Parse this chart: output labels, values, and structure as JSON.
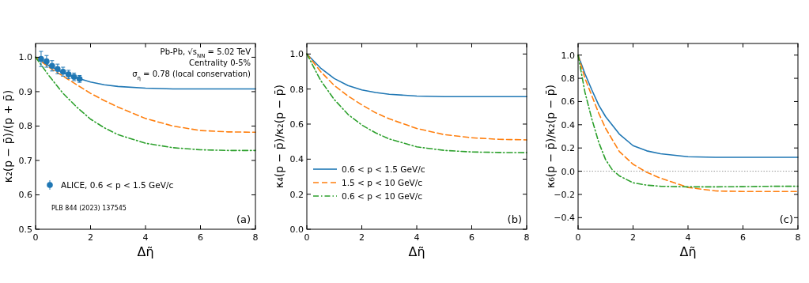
{
  "chart_data": [
    {
      "type": "line",
      "xlabel": "Δη̃",
      "ylabel": "κ₂(p − p̄)/(p + p̄)",
      "xlim": [
        0,
        8
      ],
      "xticks": [
        0,
        2,
        4,
        6,
        8
      ],
      "ylim": [
        0.5,
        1.04
      ],
      "yticks": [
        0.5,
        0.6,
        0.7,
        0.8,
        0.9,
        {
          "value": 1,
          "label": "1.0"
        }
      ],
      "grid": false,
      "legend": "bottom left",
      "annotations": [
        "Pb-Pb, √s$_{NN}$ = 5.02 TeV",
        "Centrality 0-5%",
        "σ$_{η}$ = 0.78 (local conservation)",
        "PLB 844 (2023) 137545",
        "(a)"
      ],
      "series": [
        {
          "color": "#1f77b4",
          "line_style": "solid",
          "x": [
            0,
            0.5,
            1,
            1.5,
            2,
            2.5,
            3,
            4,
            5,
            6,
            7,
            8
          ],
          "values": [
            1.0,
            0.975,
            0.955,
            0.94,
            0.928,
            0.92,
            0.915,
            0.91,
            0.908,
            0.908,
            0.908,
            0.908
          ]
        },
        {
          "color": "#ff7f0e",
          "line_style": "dashed",
          "x": [
            0,
            0.5,
            1,
            1.5,
            2,
            2.5,
            3,
            4,
            5,
            6,
            7,
            8
          ],
          "values": [
            1.0,
            0.97,
            0.945,
            0.92,
            0.895,
            0.874,
            0.855,
            0.822,
            0.8,
            0.787,
            0.783,
            0.782
          ]
        },
        {
          "color": "#2ca02c",
          "line_style": "dashdot",
          "x": [
            0,
            0.5,
            1,
            1.5,
            2,
            2.5,
            3,
            4,
            5,
            6,
            7,
            8
          ],
          "values": [
            1.0,
            0.945,
            0.895,
            0.855,
            0.82,
            0.795,
            0.775,
            0.75,
            0.737,
            0.731,
            0.729,
            0.729
          ]
        },
        {
          "type": "scatter",
          "name": "ALICE, 0.6 < p < 1.5 GeV/c",
          "color": "#1f77b4",
          "marker": "circle",
          "x": [
            0.2,
            0.4,
            0.6,
            0.8,
            1.0,
            1.2,
            1.4,
            1.6
          ],
          "values": [
            0.995,
            0.988,
            0.975,
            0.966,
            0.958,
            0.95,
            0.943,
            0.937
          ],
          "errors": [
            0.022,
            0.017,
            0.015,
            0.014,
            0.013,
            0.012,
            0.011,
            0.01
          ]
        }
      ]
    },
    {
      "type": "line",
      "xlabel": "Δη̃",
      "ylabel": "κ₄(p − p̄)/κ₂(p − p̄)",
      "xlim": [
        0,
        8
      ],
      "xticks": [
        0,
        2,
        4,
        6,
        8
      ],
      "ylim": [
        0,
        1.06
      ],
      "yticks": [
        {
          "value": 0,
          "label": "0.0"
        },
        0.2,
        0.4,
        0.6,
        0.8,
        {
          "value": 1,
          "label": "1.0"
        }
      ],
      "grid": false,
      "legend": "bottom left",
      "annotations": [
        "(b)"
      ],
      "series": [
        {
          "name": "0.6 < p < 1.5 GeV/c",
          "color": "#1f77b4",
          "line_style": "solid",
          "x": [
            0,
            0.5,
            1,
            1.5,
            2,
            2.5,
            3,
            4,
            5,
            6,
            7,
            8
          ],
          "values": [
            1.0,
            0.92,
            0.86,
            0.82,
            0.795,
            0.78,
            0.77,
            0.76,
            0.757,
            0.757,
            0.757,
            0.757
          ]
        },
        {
          "name": "1.5 < p < 10 GeV/c",
          "color": "#ff7f0e",
          "line_style": "dashed",
          "x": [
            0,
            0.5,
            1,
            1.5,
            2,
            2.5,
            3,
            4,
            5,
            6,
            7,
            8
          ],
          "values": [
            1.0,
            0.9,
            0.82,
            0.76,
            0.71,
            0.665,
            0.63,
            0.575,
            0.54,
            0.522,
            0.513,
            0.51
          ]
        },
        {
          "name": "0.6 < p < 10 GeV/c",
          "color": "#2ca02c",
          "line_style": "dashdot",
          "x": [
            0,
            0.5,
            1,
            1.5,
            2,
            2.5,
            3,
            4,
            5,
            6,
            7,
            8
          ],
          "values": [
            1.0,
            0.85,
            0.74,
            0.655,
            0.595,
            0.55,
            0.515,
            0.47,
            0.45,
            0.441,
            0.438,
            0.437
          ]
        }
      ]
    },
    {
      "type": "line",
      "xlabel": "Δη̃",
      "ylabel": "κ₆(p − p̄)/κ₂(p − p̄)",
      "xlim": [
        0,
        8
      ],
      "xticks": [
        0,
        2,
        4,
        6,
        8
      ],
      "ylim": [
        -0.5,
        1.1
      ],
      "yticks": [
        {
          "value": -0.4,
          "label": "−0.4"
        },
        {
          "value": -0.2,
          "label": "−0.2"
        },
        {
          "value": 0,
          "label": "0.0"
        },
        0.2,
        0.4,
        0.6,
        0.8,
        {
          "value": 1,
          "label": "1.0"
        }
      ],
      "grid": false,
      "annotations": [
        "(c)"
      ],
      "ref_lines": [
        {
          "axis": "y",
          "value": 0,
          "color": "#808080",
          "line_style": "dotted"
        }
      ],
      "series": [
        {
          "color": "#1f77b4",
          "line_style": "solid",
          "x": [
            0,
            0.25,
            0.5,
            0.75,
            1,
            1.5,
            2,
            2.5,
            3,
            4,
            5,
            6,
            7,
            8
          ],
          "values": [
            1.0,
            0.84,
            0.7,
            0.57,
            0.47,
            0.32,
            0.22,
            0.175,
            0.15,
            0.125,
            0.12,
            0.12,
            0.12,
            0.12
          ]
        },
        {
          "color": "#ff7f0e",
          "line_style": "dashed",
          "x": [
            0,
            0.25,
            0.5,
            0.75,
            1,
            1.5,
            2,
            2.5,
            3,
            4,
            5,
            6,
            7,
            8
          ],
          "values": [
            1.0,
            0.8,
            0.65,
            0.5,
            0.37,
            0.17,
            0.06,
            -0.01,
            -0.06,
            -0.14,
            -0.17,
            -0.175,
            -0.175,
            -0.175
          ]
        },
        {
          "color": "#2ca02c",
          "line_style": "dashdot",
          "x": [
            0,
            0.25,
            0.5,
            0.75,
            1,
            1.25,
            1.5,
            2,
            2.5,
            3,
            4,
            5,
            6,
            7,
            8
          ],
          "values": [
            1.0,
            0.68,
            0.45,
            0.25,
            0.1,
            0.01,
            -0.04,
            -0.1,
            -0.12,
            -0.13,
            -0.135,
            -0.135,
            -0.133,
            -0.13,
            -0.13
          ]
        }
      ]
    }
  ]
}
